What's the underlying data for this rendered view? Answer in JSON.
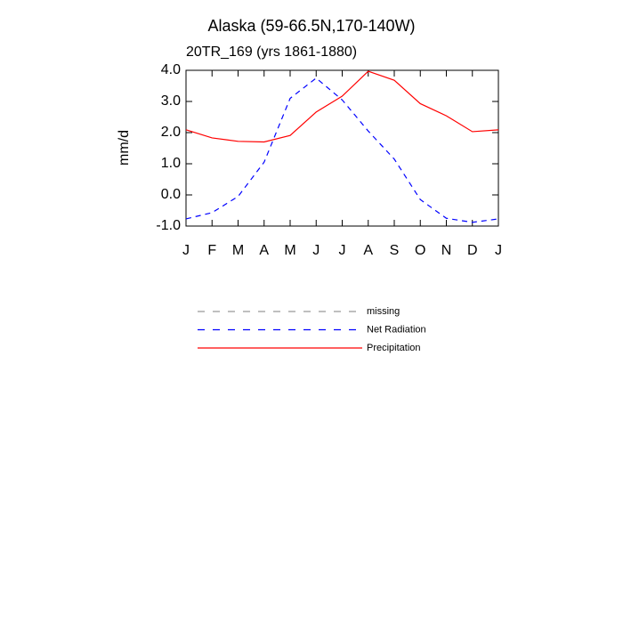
{
  "chart_data": {
    "type": "line",
    "title": "Alaska (59-66.5N,170-140W)",
    "subtitle": "20TR_169 (yrs 1861-1880)",
    "y_label": "mm/d",
    "categories": [
      "J",
      "F",
      "M",
      "A",
      "M",
      "J",
      "J",
      "A",
      "S",
      "O",
      "N",
      "D",
      "J"
    ],
    "ylim": [
      -1,
      4
    ],
    "yticks": [
      {
        "value": -1,
        "label": "-1.0"
      },
      {
        "value": 0,
        "label": "0.0"
      },
      {
        "value": 1,
        "label": "1.0"
      },
      {
        "value": 2,
        "label": "2.0"
      },
      {
        "value": 3,
        "label": "3.0"
      },
      {
        "value": 4,
        "label": "4.0"
      }
    ],
    "series": [
      {
        "name": "missing",
        "color": "#999999",
        "dash": true,
        "values": [
          null,
          null,
          null,
          null,
          null,
          null,
          null,
          null,
          null,
          null,
          null,
          null,
          null
        ]
      },
      {
        "name": "Net Radiation",
        "color": "#0000ff",
        "dash": true,
        "values": [
          -0.77,
          -0.57,
          -0.05,
          1.05,
          3.1,
          3.75,
          3.05,
          2.05,
          1.15,
          -0.15,
          -0.75,
          -0.88,
          -0.77
        ]
      },
      {
        "name": "Precipitation",
        "color": "#ff0000",
        "dash": false,
        "values": [
          2.09,
          1.83,
          1.72,
          1.7,
          1.91,
          2.66,
          3.17,
          3.97,
          3.68,
          2.93,
          2.54,
          2.03,
          2.09
        ]
      }
    ]
  }
}
